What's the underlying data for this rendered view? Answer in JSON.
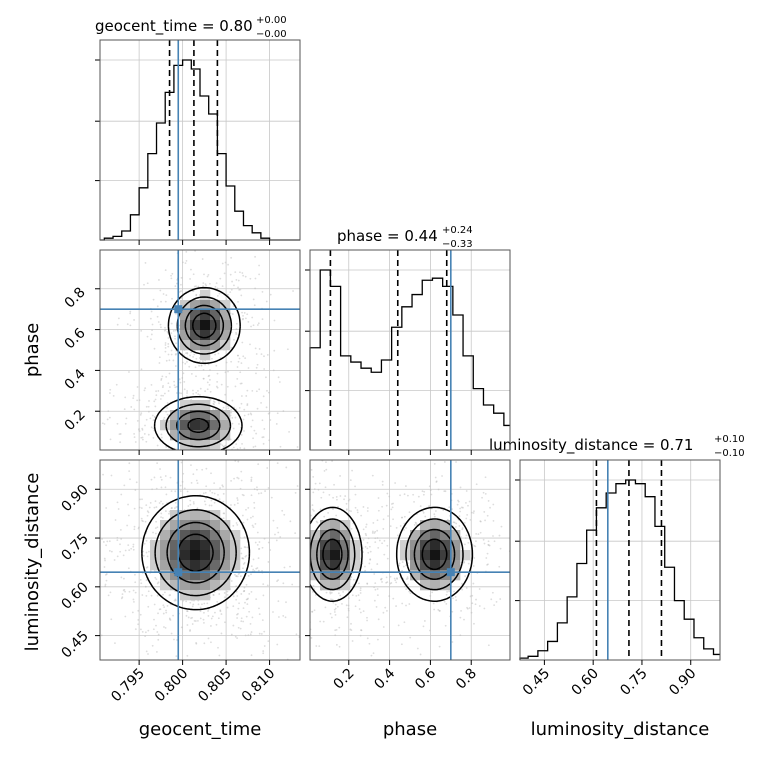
{
  "chart_data": {
    "type": "corner",
    "parameters": [
      "geocent_time",
      "phase",
      "luminosity_distance"
    ],
    "ranges": {
      "geocent_time": [
        0.7905,
        0.8135
      ],
      "phase": [
        0.01,
        0.99
      ],
      "luminosity_distance": [
        0.375,
        0.99
      ]
    },
    "ticks": {
      "geocent_time": {
        "values": [
          0.795,
          0.8,
          0.805,
          0.81
        ],
        "labels": [
          "0.795",
          "0.800",
          "0.805",
          "0.810"
        ]
      },
      "phase": {
        "values": [
          0.2,
          0.4,
          0.6,
          0.8
        ],
        "labels": [
          "0.2",
          "0.4",
          "0.6",
          "0.8"
        ]
      },
      "luminosity_distance": {
        "values": [
          0.45,
          0.6,
          0.75,
          0.9
        ],
        "labels": [
          "0.45",
          "0.60",
          "0.75",
          "0.90"
        ]
      }
    },
    "injection": {
      "geocent_time": 0.7995,
      "phase": 0.7,
      "luminosity_distance": 0.645
    },
    "titles": [
      {
        "param": "geocent_time",
        "text": "geocent_time = 0.80",
        "sup": "+0.00",
        "sub": "−0.00"
      },
      {
        "param": "phase",
        "text": "phase = 0.44",
        "sup": "+0.24",
        "sub": "−0.33"
      },
      {
        "param": "luminosity_distance",
        "text": "luminosity_distance = 0.71",
        "sup": "+0.10",
        "sub": "−0.10"
      }
    ],
    "quantiles": {
      "geocent_time": [
        0.7985,
        0.8013,
        0.804
      ],
      "phase": [
        0.11,
        0.44,
        0.68
      ],
      "luminosity_distance": [
        0.61,
        0.71,
        0.81
      ]
    },
    "histograms": {
      "geocent_time": {
        "edges": [
          0.7905,
          0.791,
          0.792,
          0.793,
          0.794,
          0.795,
          0.796,
          0.797,
          0.798,
          0.799,
          0.8,
          0.801,
          0.802,
          0.803,
          0.804,
          0.805,
          0.806,
          0.807,
          0.808,
          0.809,
          0.81,
          0.8135
        ],
        "counts": [
          0,
          1,
          2,
          5,
          14,
          29,
          48,
          65,
          82,
          97,
          100,
          95,
          80,
          70,
          48,
          30,
          16,
          8,
          4,
          1,
          0
        ]
      },
      "phase": {
        "edges": [
          0.01,
          0.06,
          0.11,
          0.16,
          0.21,
          0.26,
          0.31,
          0.36,
          0.41,
          0.46,
          0.51,
          0.56,
          0.61,
          0.66,
          0.71,
          0.76,
          0.81,
          0.86,
          0.91,
          0.96,
          0.99
        ],
        "counts": [
          50,
          88,
          80,
          46,
          43,
          40,
          38,
          44,
          60,
          70,
          76,
          83,
          84,
          80,
          66,
          46,
          30,
          22,
          18,
          12
        ]
      },
      "luminosity_distance": {
        "edges": [
          0.375,
          0.4,
          0.43,
          0.46,
          0.49,
          0.52,
          0.55,
          0.58,
          0.61,
          0.64,
          0.67,
          0.7,
          0.73,
          0.76,
          0.79,
          0.82,
          0.85,
          0.88,
          0.91,
          0.94,
          0.97,
          0.99
        ],
        "counts": [
          1,
          2,
          5,
          10,
          20,
          34,
          52,
          70,
          82,
          90,
          95,
          97,
          95,
          88,
          72,
          50,
          32,
          22,
          12,
          6,
          3
        ]
      }
    },
    "pairs": [
      {
        "x": "geocent_time",
        "y": "phase",
        "modes": [
          {
            "cx": 0.8025,
            "cy": 0.62,
            "sx": 0.002,
            "sy": 0.09,
            "w": 1.0
          },
          {
            "cx": 0.8018,
            "cy": 0.13,
            "sx": 0.0025,
            "sy": 0.07,
            "w": 0.9,
            "rot": -0.5
          }
        ]
      },
      {
        "x": "geocent_time",
        "y": "luminosity_distance",
        "modes": [
          {
            "cx": 0.8015,
            "cy": 0.705,
            "sx": 0.003,
            "sy": 0.085,
            "w": 1.0
          }
        ]
      },
      {
        "x": "phase",
        "y": "luminosity_distance",
        "modes": [
          {
            "cx": 0.12,
            "cy": 0.7,
            "sx": 0.07,
            "sy": 0.07,
            "w": 1.0
          },
          {
            "cx": 0.62,
            "cy": 0.7,
            "sx": 0.09,
            "sy": 0.07,
            "w": 1.0
          }
        ]
      }
    ],
    "grid": true,
    "colors": {
      "injection": "#4682b4",
      "hist": "#000000",
      "grid": "#c8c8c8"
    }
  }
}
